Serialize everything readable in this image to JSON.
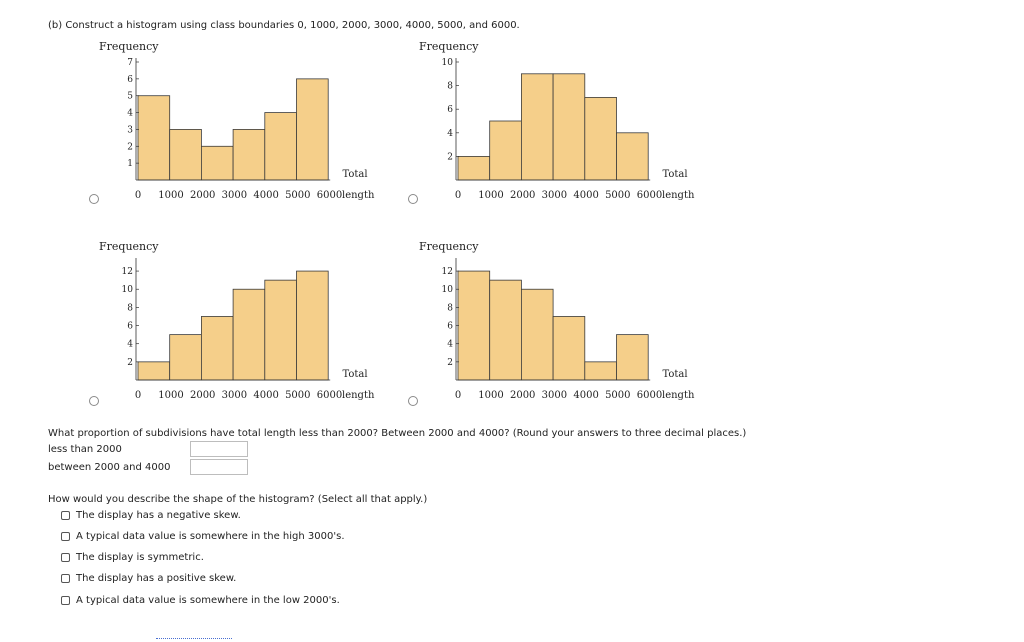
{
  "prompt": "(b) Construct a histogram using class boundaries 0, 1000, 2000, 3000, 4000, 5000, and 6000.",
  "hist_options": [
    {
      "ylabel": "Frequency",
      "xlabel": "Total\nlength",
      "y_ticks": [
        1,
        2,
        3,
        4,
        5,
        6,
        7
      ],
      "y_max": 7,
      "x_ticks": [
        "0",
        "1000",
        "2000",
        "3000",
        "4000",
        "5000",
        "6000"
      ],
      "values": [
        5,
        3,
        2,
        3,
        4,
        6
      ],
      "selected": false
    },
    {
      "ylabel": "Frequency",
      "xlabel": "Total\nlength",
      "y_ticks": [
        2,
        4,
        6,
        8,
        10
      ],
      "y_max": 10,
      "x_ticks": [
        "0",
        "1000",
        "2000",
        "3000",
        "4000",
        "5000",
        "6000"
      ],
      "values": [
        2,
        5,
        9,
        9,
        7,
        4
      ],
      "selected": false
    },
    {
      "ylabel": "Frequency",
      "xlabel": "Total\nlength",
      "y_ticks": [
        2,
        4,
        6,
        8,
        10,
        12
      ],
      "y_max": 13,
      "x_ticks": [
        "0",
        "1000",
        "2000",
        "3000",
        "4000",
        "5000",
        "6000"
      ],
      "values": [
        2,
        5,
        7,
        10,
        11,
        12
      ],
      "selected": false
    },
    {
      "ylabel": "Frequency",
      "xlabel": "Total\nlength",
      "y_ticks": [
        2,
        4,
        6,
        8,
        10,
        12
      ],
      "y_max": 13,
      "x_ticks": [
        "0",
        "1000",
        "2000",
        "3000",
        "4000",
        "5000",
        "6000"
      ],
      "values": [
        12,
        11,
        10,
        7,
        2,
        5
      ],
      "selected": false
    }
  ],
  "chart_data": [
    {
      "type": "bar",
      "categories": [
        "0-1000",
        "1000-2000",
        "2000-3000",
        "3000-4000",
        "4000-5000",
        "5000-6000"
      ],
      "values": [
        5,
        3,
        2,
        3,
        4,
        6
      ],
      "ylabel": "Frequency",
      "xlabel": "Total length",
      "ylim": [
        0,
        7
      ]
    },
    {
      "type": "bar",
      "categories": [
        "0-1000",
        "1000-2000",
        "2000-3000",
        "3000-4000",
        "4000-5000",
        "5000-6000"
      ],
      "values": [
        2,
        5,
        9,
        9,
        7,
        4
      ],
      "ylabel": "Frequency",
      "xlabel": "Total length",
      "ylim": [
        0,
        10
      ]
    },
    {
      "type": "bar",
      "categories": [
        "0-1000",
        "1000-2000",
        "2000-3000",
        "3000-4000",
        "4000-5000",
        "5000-6000"
      ],
      "values": [
        2,
        5,
        7,
        10,
        11,
        12
      ],
      "ylabel": "Frequency",
      "xlabel": "Total length",
      "ylim": [
        0,
        13
      ]
    },
    {
      "type": "bar",
      "categories": [
        "0-1000",
        "1000-2000",
        "2000-3000",
        "3000-4000",
        "4000-5000",
        "5000-6000"
      ],
      "values": [
        12,
        11,
        10,
        7,
        2,
        5
      ],
      "ylabel": "Frequency",
      "xlabel": "Total length",
      "ylim": [
        0,
        13
      ]
    }
  ],
  "proportion": {
    "question": "What proportion of subdivisions have total length less than 2000? Between 2000 and 4000? (Round your answers to three decimal places.)",
    "less_label": "less than 2000",
    "less_value": "",
    "between_label": "between 2000 and 4000",
    "between_value": ""
  },
  "shape": {
    "question": "How would you describe the shape of the histogram? (Select all that apply.)",
    "options": [
      "The display has a negative skew.",
      "A typical data value is somewhere in the high 3000's.",
      "The display is symmetric.",
      "The display has a positive skew.",
      "A typical data value is somewhere in the low 2000's."
    ]
  },
  "colors": {
    "bar_fill": "#f5cf8a",
    "bar_stroke": "#3a3a3a",
    "axis": "#333333"
  }
}
